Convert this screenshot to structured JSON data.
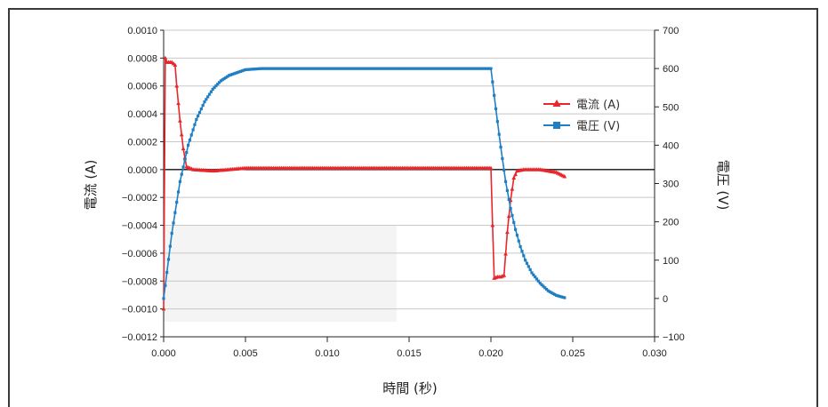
{
  "chart_data": {
    "type": "line",
    "xlabel": "時間 (秒)",
    "ylabel_left": "電流 (A)",
    "ylabel_right": "電圧 (V)",
    "xlim": [
      0,
      0.03
    ],
    "ylim_left": [
      -0.0012,
      0.001
    ],
    "ylim_right": [
      -100,
      700
    ],
    "grid": true,
    "legend_position": "right",
    "x_ticks": [
      "0.000",
      "0.005",
      "0.010",
      "0.015",
      "0.020",
      "0.025",
      "0.030"
    ],
    "y_left_ticks": [
      "0.0010",
      "0.0008",
      "0.0006",
      "0.0004",
      "0.0002",
      "0.0000",
      "−0.0002",
      "−0.0004",
      "−0.0006",
      "−0.0008",
      "−0.0010",
      "−0.0012"
    ],
    "y_right_ticks": [
      "700",
      "600",
      "500",
      "400",
      "300",
      "200",
      "100",
      "0",
      "−100"
    ],
    "series": [
      {
        "name": "電流 (A)",
        "axis": "left",
        "color": "#e8262b",
        "marker": "triangle",
        "x": [
          0.0,
          0.0001,
          0.0002,
          0.0003,
          0.0005,
          0.0007,
          0.0008,
          0.001,
          0.0012,
          0.0014,
          0.0018,
          0.003,
          0.005,
          0.01,
          0.015,
          0.0195,
          0.02,
          0.0201,
          0.0202,
          0.0204,
          0.0206,
          0.0208,
          0.021,
          0.0212,
          0.0214,
          0.0216,
          0.022,
          0.023,
          0.024,
          0.0245
        ],
        "values": [
          -0.001,
          0.0008,
          0.00077,
          0.00077,
          0.00077,
          0.00075,
          0.0006,
          0.00035,
          0.00015,
          2e-05,
          0.0,
          -1e-05,
          1e-05,
          1e-05,
          1e-05,
          1e-05,
          1e-05,
          -0.0004,
          -0.00078,
          -0.00077,
          -0.00077,
          -0.00076,
          -0.00045,
          -0.00022,
          -6e-05,
          -1e-05,
          0.0,
          0.0,
          -2e-05,
          -5e-05
        ]
      },
      {
        "name": "電圧 (V)",
        "axis": "right",
        "color": "#1f7fc4",
        "marker": "square",
        "x": [
          0.0,
          0.0005,
          0.001,
          0.0015,
          0.002,
          0.0025,
          0.003,
          0.0035,
          0.004,
          0.005,
          0.006,
          0.007,
          0.01,
          0.015,
          0.02,
          0.0203,
          0.0206,
          0.0209,
          0.0212,
          0.0215,
          0.0218,
          0.0221,
          0.0225,
          0.023,
          0.0235,
          0.024,
          0.0245
        ],
        "values": [
          0,
          170,
          305,
          400,
          467,
          513,
          546,
          568,
          582,
          597,
          600,
          600,
          600,
          600,
          600,
          495,
          395,
          305,
          235,
          180,
          135,
          100,
          67,
          40,
          20,
          8,
          2
        ]
      }
    ]
  }
}
